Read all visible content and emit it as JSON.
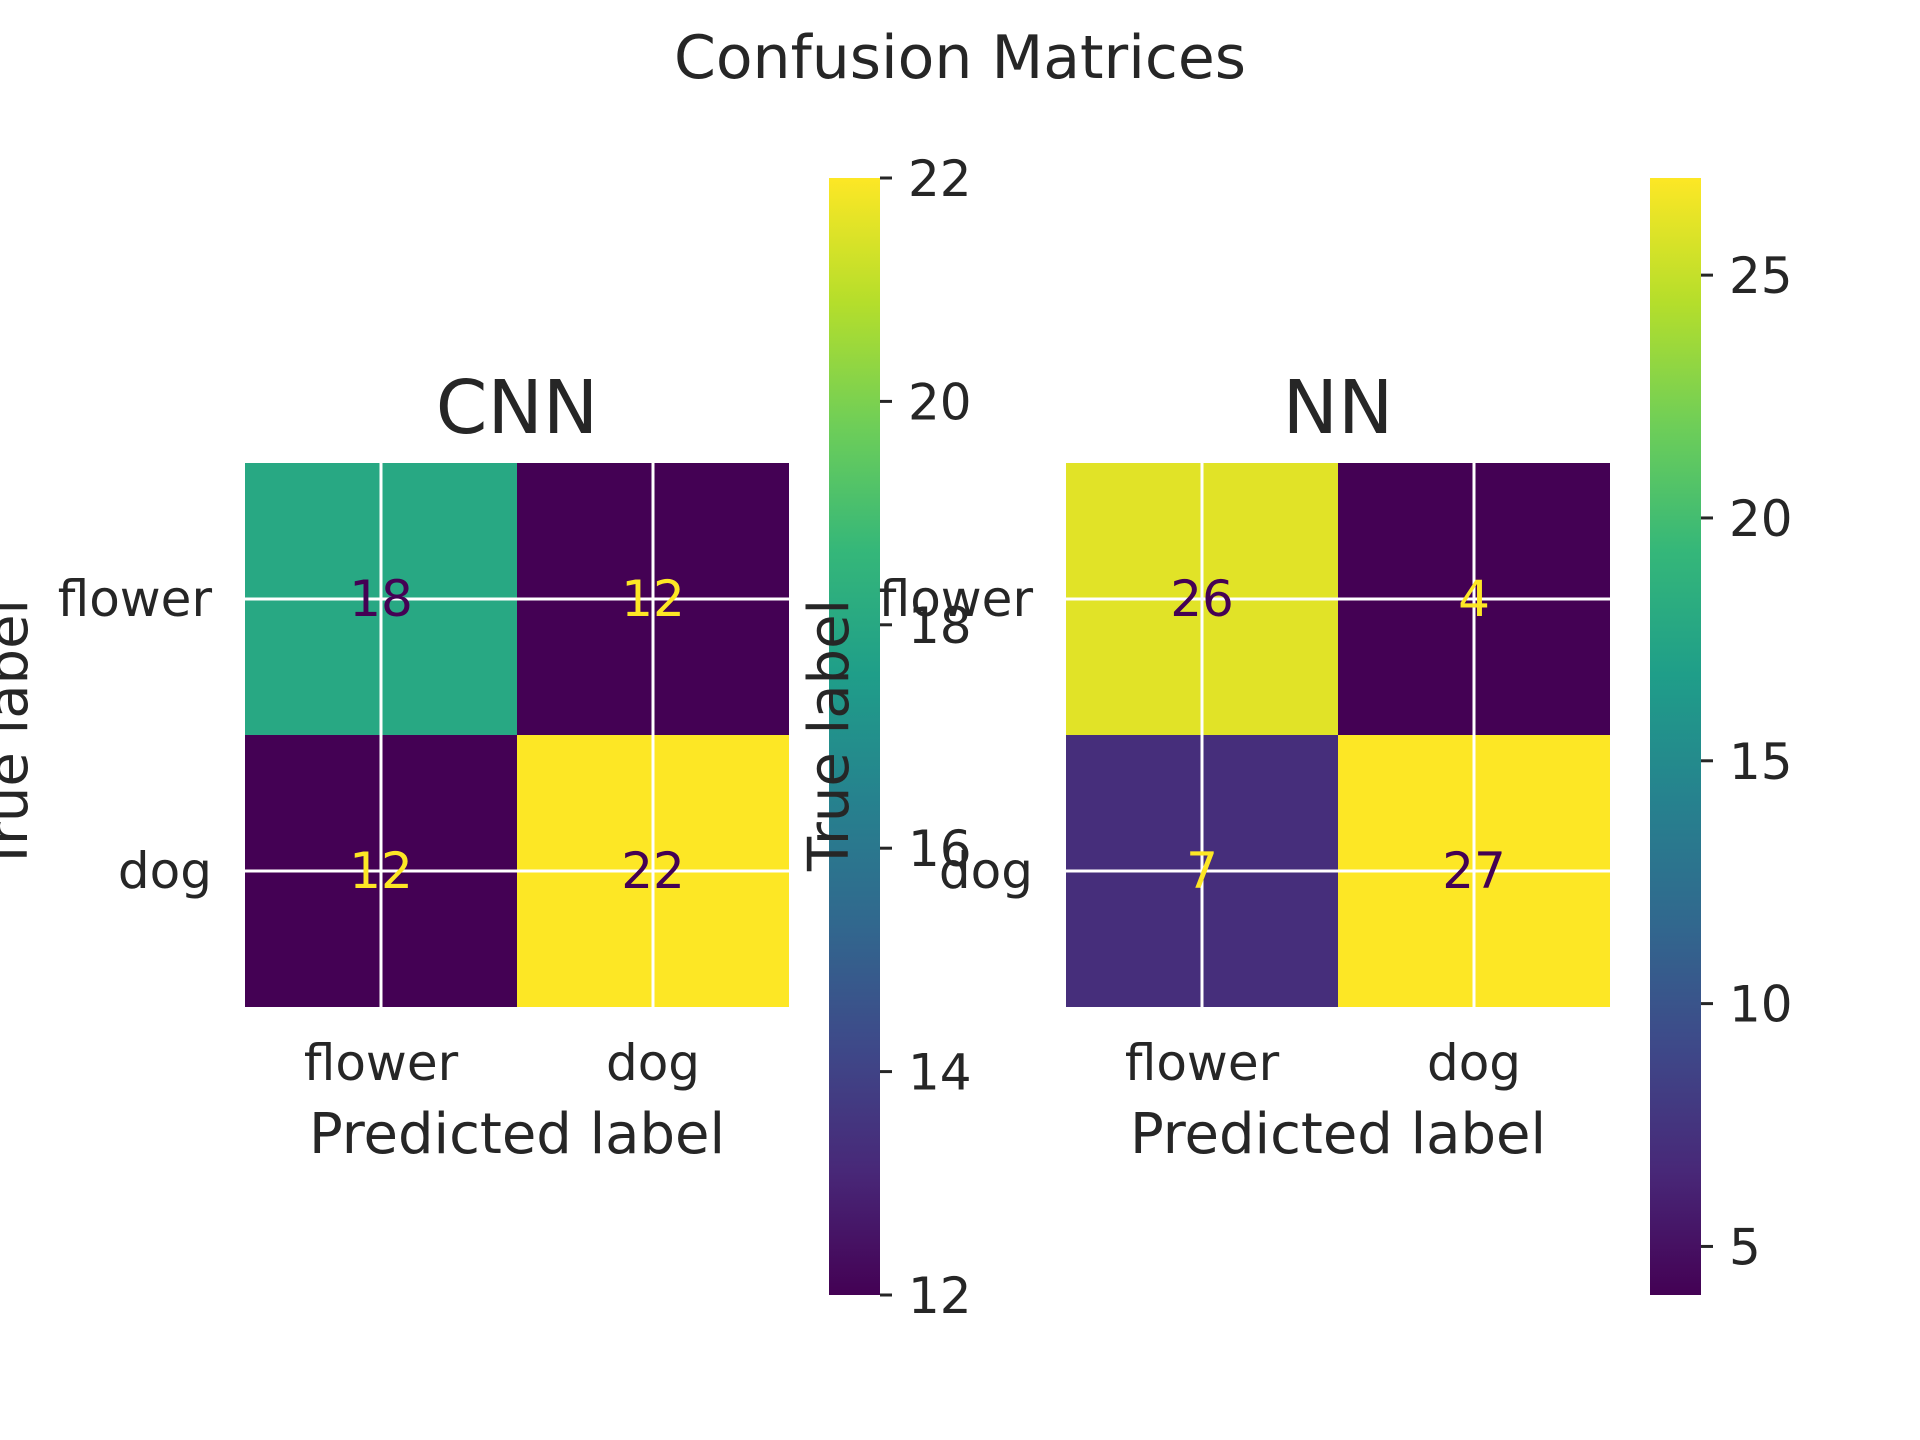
{
  "figure": {
    "title": "Confusion Matrices"
  },
  "colormap": {
    "name": "viridis",
    "stops": [
      "#440154",
      "#482878",
      "#3e4989",
      "#31688e",
      "#26828e",
      "#1f9e89",
      "#35b779",
      "#6ece58",
      "#b5de2b",
      "#fde725"
    ]
  },
  "label_colors": {
    "dark": "#440154",
    "light": "#fde725"
  },
  "chart_data": [
    {
      "type": "heatmap",
      "title": "CNN",
      "xlabel": "Predicted label",
      "ylabel": "True label",
      "x_categories": [
        "flower",
        "dog"
      ],
      "y_categories": [
        "flower",
        "dog"
      ],
      "values": [
        [
          18,
          12
        ],
        [
          12,
          22
        ]
      ],
      "colorbar": {
        "vmin": 12,
        "vmax": 22,
        "ticks": [
          12,
          14,
          16,
          18,
          20,
          22
        ]
      },
      "grid": true
    },
    {
      "type": "heatmap",
      "title": "NN",
      "xlabel": "Predicted label",
      "ylabel": "True label",
      "x_categories": [
        "flower",
        "dog"
      ],
      "y_categories": [
        "flower",
        "dog"
      ],
      "values": [
        [
          26,
          4
        ],
        [
          7,
          27
        ]
      ],
      "colorbar": {
        "vmin": 4,
        "vmax": 27,
        "ticks": [
          5,
          10,
          15,
          20,
          25
        ]
      },
      "grid": true
    }
  ]
}
